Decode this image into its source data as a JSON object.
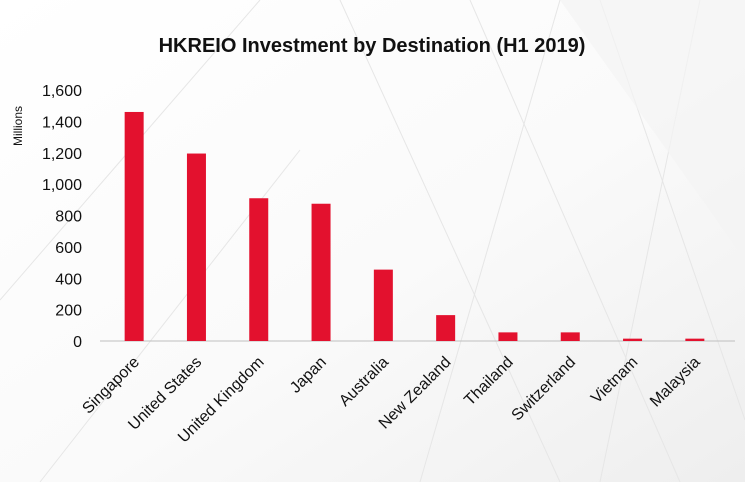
{
  "chart_data": {
    "type": "bar",
    "title": "HKREIO Investment by Destination (H1 2019)",
    "ylabel": "Millions",
    "xlabel": "",
    "categories": [
      "Singapore",
      "United States",
      "United Kingdom",
      "Japan",
      "Australia",
      "New Zealand",
      "Thailand",
      "Switzerland",
      "Vietnam",
      "Malaysia"
    ],
    "values": [
      1460,
      1195,
      910,
      875,
      455,
      165,
      55,
      55,
      15,
      15
    ],
    "ylim": [
      0,
      1600
    ],
    "yticks": [
      "0",
      "200",
      "400",
      "600",
      "800",
      "1,000",
      "1,200",
      "1,400",
      "1,600"
    ],
    "grid": false,
    "legend": "none",
    "bar_color": "#e3112e"
  }
}
